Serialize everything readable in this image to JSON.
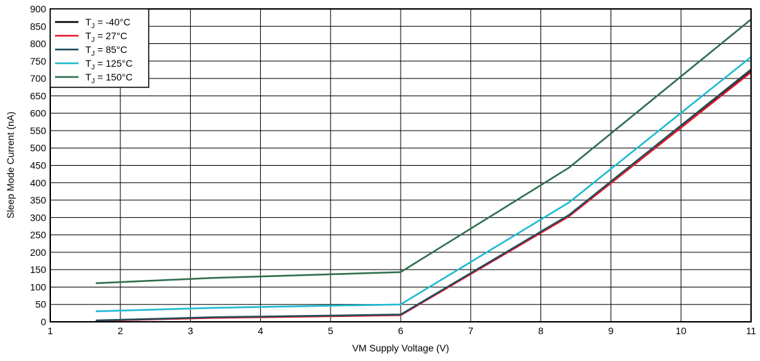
{
  "chart_data": {
    "type": "line",
    "title": "",
    "xlabel": "VM Supply Voltage (V)",
    "ylabel": "Sleep Mode Current (nA)",
    "xlim": [
      1,
      11
    ],
    "ylim": [
      0,
      900
    ],
    "x_ticks": [
      1,
      2,
      3,
      4,
      5,
      6,
      7,
      8,
      9,
      10,
      11
    ],
    "y_ticks": [
      0,
      50,
      100,
      150,
      200,
      250,
      300,
      350,
      400,
      450,
      500,
      550,
      600,
      650,
      700,
      750,
      800,
      850,
      900
    ],
    "grid": true,
    "legend_position": "top-left",
    "series": [
      {
        "name": "T",
        "name_sub": "J",
        "name_rest": " = -40°C",
        "color": "#000000",
        "x": [
          1.65,
          3.3,
          6.0,
          8.4,
          11.0
        ],
        "y": [
          3,
          12,
          20,
          305,
          722
        ]
      },
      {
        "name": "T",
        "name_sub": "J",
        "name_rest": " = 27°C",
        "color": "#e8192c",
        "x": [
          1.65,
          3.3,
          6.0,
          8.4,
          11.0
        ],
        "y": [
          3,
          11,
          19,
          303,
          718
        ]
      },
      {
        "name": "T",
        "name_sub": "J",
        "name_rest": " = 85°C",
        "color": "#1f4e5a",
        "x": [
          1.65,
          3.3,
          6.0,
          8.4,
          11.0
        ],
        "y": [
          4,
          13,
          21,
          307,
          726
        ]
      },
      {
        "name": "T",
        "name_sub": "J",
        "name_rest": " = 125°C",
        "color": "#1fbad0",
        "x": [
          1.65,
          3.3,
          6.0,
          8.4,
          11.0
        ],
        "y": [
          30,
          40,
          50,
          343,
          762
        ]
      },
      {
        "name": "T",
        "name_sub": "J",
        "name_rest": " = 150°C",
        "color": "#2e6e4e",
        "x": [
          1.65,
          3.3,
          6.0,
          8.4,
          11.0
        ],
        "y": [
          111,
          126,
          143,
          443,
          870
        ]
      }
    ]
  }
}
